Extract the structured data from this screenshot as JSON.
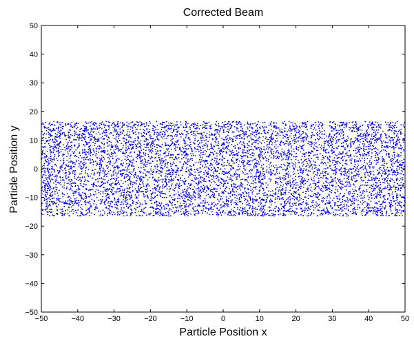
{
  "chart_data": {
    "type": "scatter",
    "title": "Corrected Beam",
    "xlabel": "Particle Position x",
    "ylabel": "Particle Position y",
    "xlim": [
      -50,
      50
    ],
    "ylim": [
      -50,
      50
    ],
    "xticks": [
      -50,
      -40,
      -30,
      -20,
      -10,
      0,
      10,
      20,
      30,
      40,
      50
    ],
    "yticks": [
      -50,
      -40,
      -30,
      -20,
      -10,
      0,
      10,
      20,
      30,
      40,
      50
    ],
    "grid": false,
    "marker_color": "#0000ff",
    "series": [
      {
        "distribution": "uniform",
        "x_range": [
          -50,
          50
        ],
        "y_range": [
          -16.5,
          16.5
        ],
        "approx_point_count": 7000
      }
    ]
  }
}
